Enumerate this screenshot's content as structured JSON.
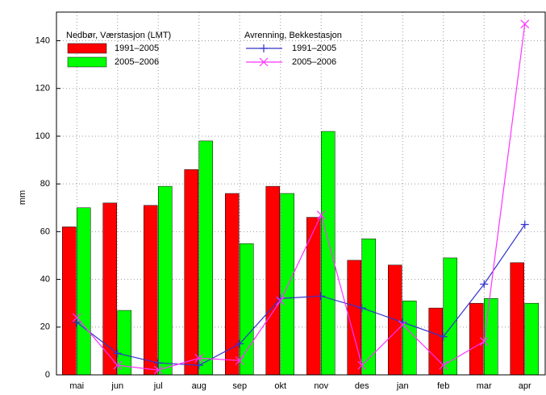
{
  "chart_data": {
    "type": "bar-line",
    "y_label": "mm",
    "categories": [
      "mai",
      "jun",
      "jul",
      "aug",
      "sep",
      "okt",
      "nov",
      "des",
      "jan",
      "feb",
      "mar",
      "apr"
    ],
    "legend_titles": [
      "Nedbør, Værstasjon (LMT)",
      "Avrenning, Bekkestasjon"
    ],
    "series": [
      {
        "name": "1991–2005",
        "type": "bar",
        "color": "#ff0000",
        "values": [
          62,
          72,
          71,
          86,
          76,
          79,
          66,
          48,
          46,
          28,
          30,
          47
        ]
      },
      {
        "name": "2005–2006",
        "type": "bar",
        "color": "#00ff00",
        "values": [
          70,
          27,
          79,
          98,
          55,
          76,
          102,
          57,
          31,
          49,
          32,
          30
        ]
      },
      {
        "name": "1991–2005",
        "type": "line",
        "marker": "plus",
        "color": "#3333cc",
        "values": [
          22,
          9,
          5,
          4,
          13,
          32,
          33,
          28,
          22,
          16,
          38,
          63
        ]
      },
      {
        "name": "2005–2006",
        "type": "line",
        "marker": "cross",
        "color": "#ff33ff",
        "values": [
          24,
          4,
          2,
          7,
          6,
          31,
          67,
          4,
          21,
          4,
          14,
          147
        ]
      }
    ],
    "ylim": [
      0,
      152
    ],
    "yticks": [
      0,
      20,
      40,
      60,
      80,
      100,
      120,
      140
    ],
    "grid": true
  }
}
